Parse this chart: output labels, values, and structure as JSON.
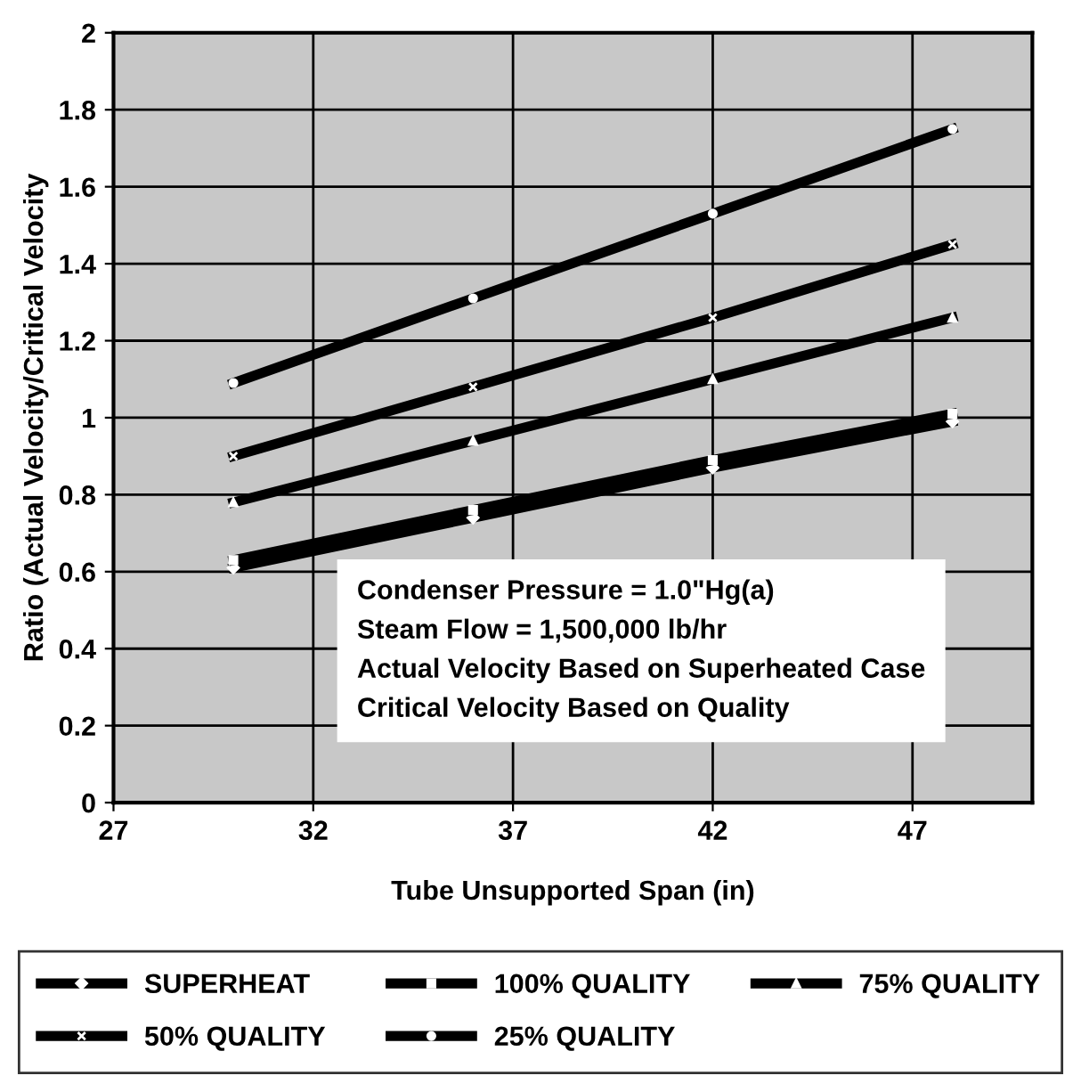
{
  "chart_data": {
    "type": "line",
    "xlabel": "Tube Unsupported Span (in)",
    "ylabel": "Ratio (Actual Velocity/Critical Velocity",
    "x": [
      30,
      36,
      42,
      48
    ],
    "series": [
      {
        "name": "SUPERHEAT",
        "color": "#000000",
        "values": [
          0.61,
          0.74,
          0.87,
          0.99
        ],
        "marker": "diamond"
      },
      {
        "name": "100% QUALITY",
        "color": "#000000",
        "values": [
          0.63,
          0.76,
          0.89,
          1.01
        ],
        "marker": "square"
      },
      {
        "name": "75% QUALITY",
        "color": "#000000",
        "values": [
          0.78,
          0.94,
          1.1,
          1.26
        ],
        "marker": "triangle"
      },
      {
        "name": "50% QUALITY",
        "color": "#000000",
        "values": [
          0.9,
          1.08,
          1.26,
          1.45
        ],
        "marker": "cross"
      },
      {
        "name": "25% QUALITY",
        "color": "#000000",
        "values": [
          1.09,
          1.31,
          1.53,
          1.75
        ],
        "marker": "circle"
      }
    ],
    "xlim": [
      27,
      50
    ],
    "xticks": [
      27,
      32,
      37,
      42,
      47
    ],
    "ylim": [
      0,
      2
    ],
    "yticks": [
      0,
      0.2,
      0.4,
      0.6,
      0.8,
      1,
      1.2,
      1.4,
      1.6,
      1.8,
      2
    ],
    "grid": true,
    "legend": "bottom",
    "annotations": [
      "Condenser Pressure = 1.0\"Hg(a)",
      "Steam Flow = 1,500,000 lb/hr",
      "Actual Velocity Based on Superheated Case",
      "Critical Velocity Based on Quality"
    ]
  }
}
